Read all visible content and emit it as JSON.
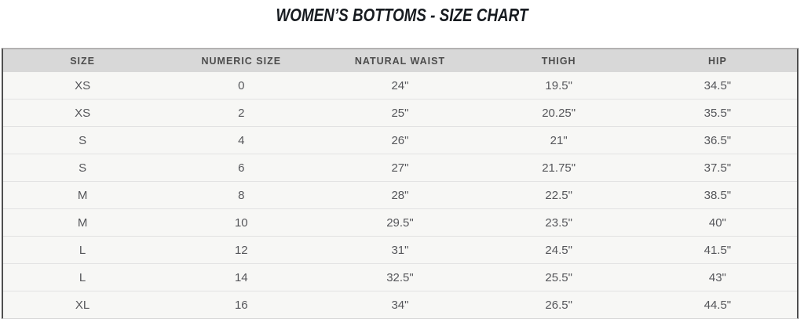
{
  "page": {
    "title": "WOMEN’S BOTTOMS - SIZE CHART"
  },
  "size_chart": {
    "columns": [
      "SIZE",
      "NUMERIC SIZE",
      "NATURAL WAIST",
      "THIGH",
      "HIP"
    ],
    "rows": [
      [
        "XS",
        "0",
        "24\"",
        "19.5\"",
        "34.5\""
      ],
      [
        "XS",
        "2",
        "25\"",
        "20.25\"",
        "35.5\""
      ],
      [
        "S",
        "4",
        "26\"",
        "21\"",
        "36.5\""
      ],
      [
        "S",
        "6",
        "27\"",
        "21.75\"",
        "37.5\""
      ],
      [
        "M",
        "8",
        "28\"",
        "22.5\"",
        "38.5\""
      ],
      [
        "M",
        "10",
        "29.5\"",
        "23.5\"",
        "40\""
      ],
      [
        "L",
        "12",
        "31\"",
        "24.5\"",
        "41.5\""
      ],
      [
        "L",
        "14",
        "32.5\"",
        "25.5\"",
        "43\""
      ],
      [
        "XL",
        "16",
        "34\"",
        "26.5\"",
        "44.5\""
      ]
    ]
  },
  "colors": {
    "header_background": "#d8d8d8",
    "row_background": "#f7f7f5",
    "row_divider": "#e2e2e2",
    "side_border": "#4f4f4f",
    "title_text": "#171b20",
    "body_text": "#55565a"
  }
}
